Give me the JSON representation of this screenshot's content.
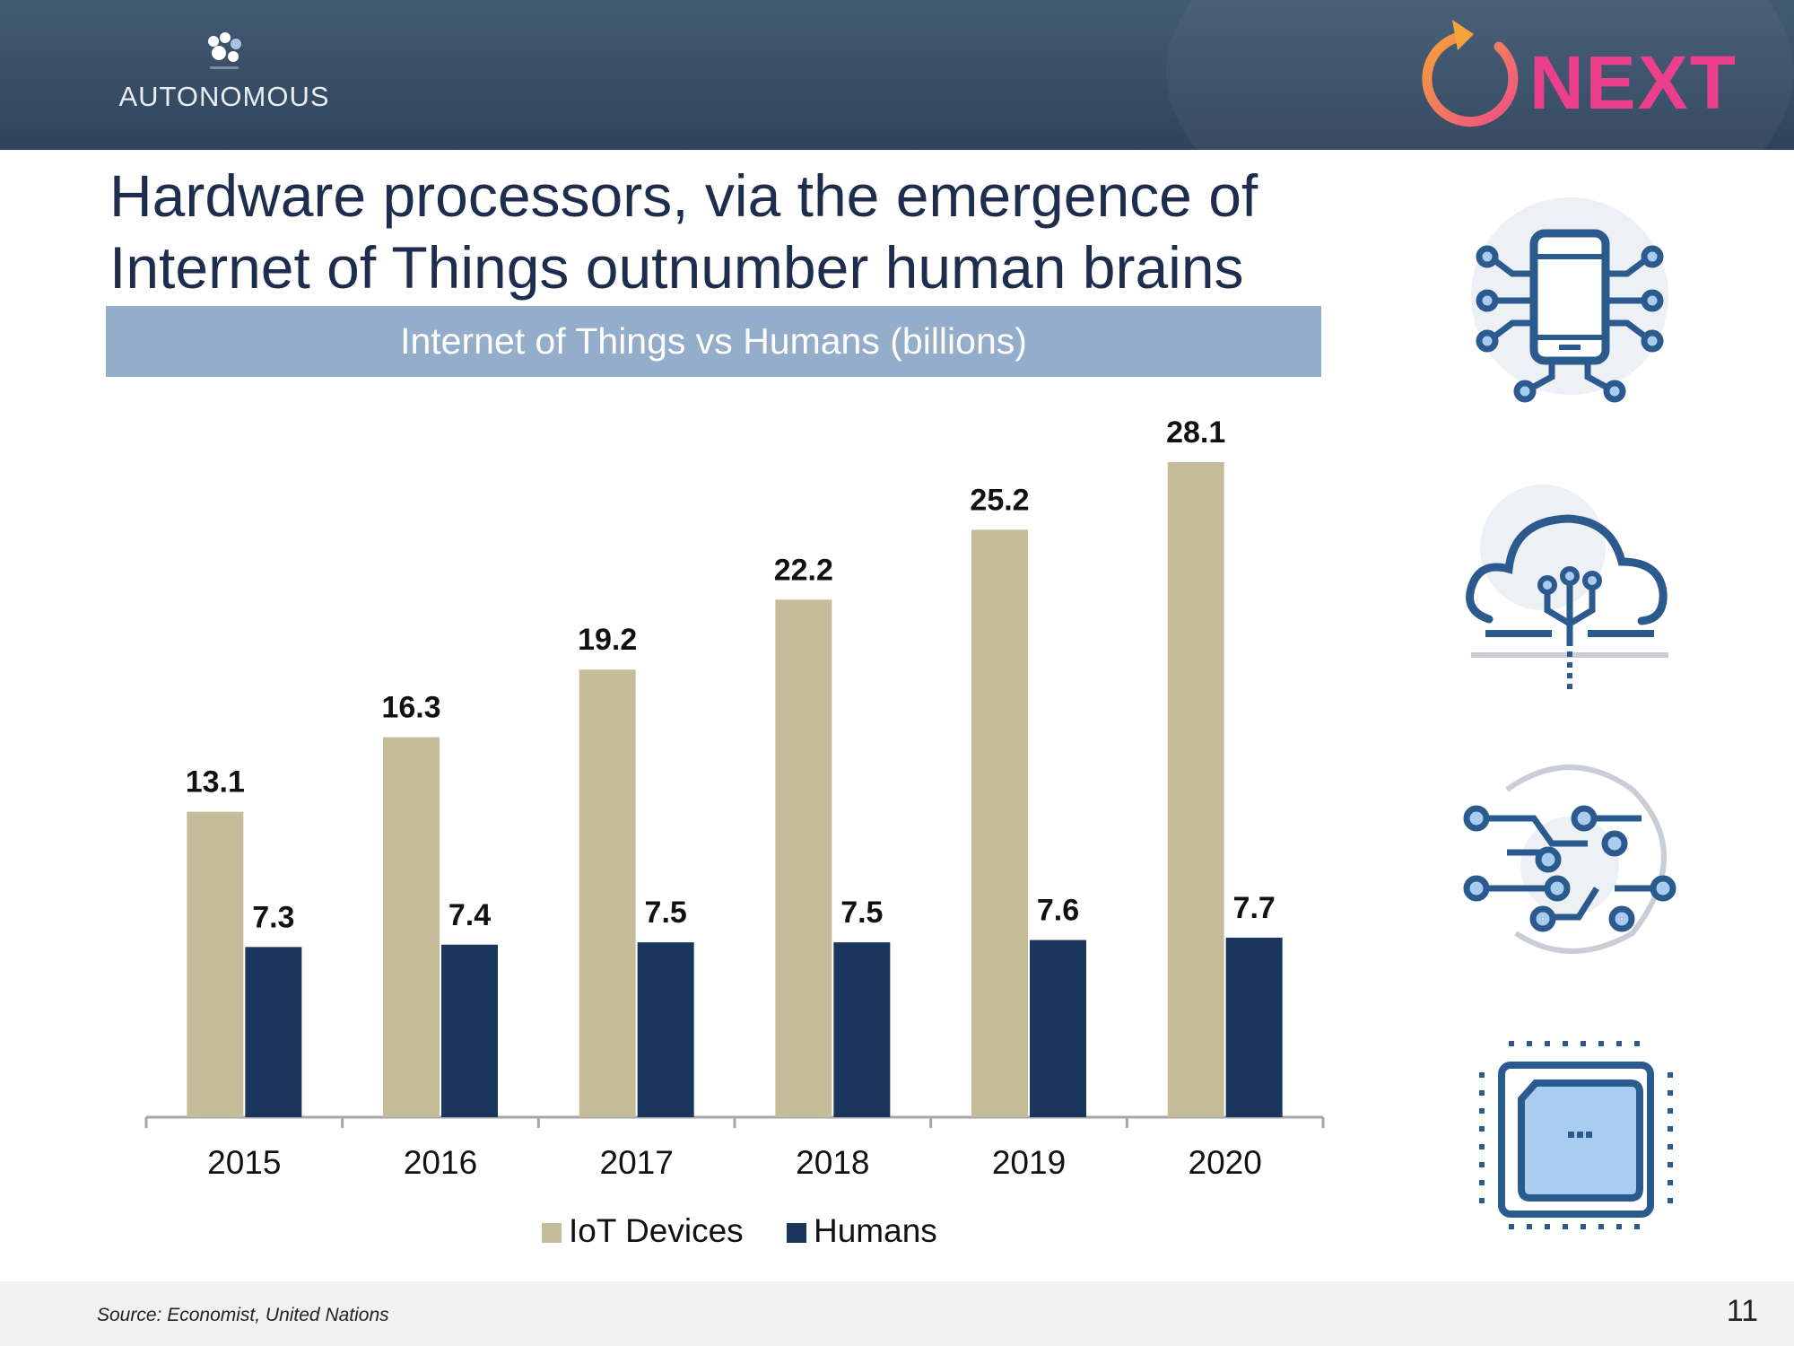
{
  "header": {
    "brand_left": "AUTONOMOUS",
    "brand_right": "NEXT",
    "colors": {
      "bar": "#3d536c",
      "next_text": "#ec3f8c",
      "next_ring": "#f39a3b"
    }
  },
  "title": "Hardware processors, via the emergence of Internet of Things outnumber human brains",
  "chart_data": {
    "type": "bar",
    "title": "Internet of Things vs Humans (billions)",
    "categories": [
      "2015",
      "2016",
      "2017",
      "2018",
      "2019",
      "2020"
    ],
    "series": [
      {
        "name": "IoT Devices",
        "color": "#c5bd9a",
        "values": [
          13.1,
          16.3,
          19.2,
          22.2,
          25.2,
          28.1
        ]
      },
      {
        "name": "Humans",
        "color": "#1b365d",
        "values": [
          7.3,
          7.4,
          7.5,
          7.5,
          7.6,
          7.7
        ]
      }
    ],
    "legend_labels": [
      "IoT Devices",
      "Humans"
    ],
    "legend_position": "bottom",
    "data_labels": true,
    "xlabel": "",
    "ylabel": "",
    "ylim": [
      0,
      28.1
    ],
    "grid": false
  },
  "side_icons": [
    "smartphone-circuit-icon",
    "cloud-circuit-icon",
    "network-circuit-icon",
    "cpu-chip-icon"
  ],
  "footer": {
    "source": "Source: Economist, United Nations",
    "page_number": "11"
  }
}
